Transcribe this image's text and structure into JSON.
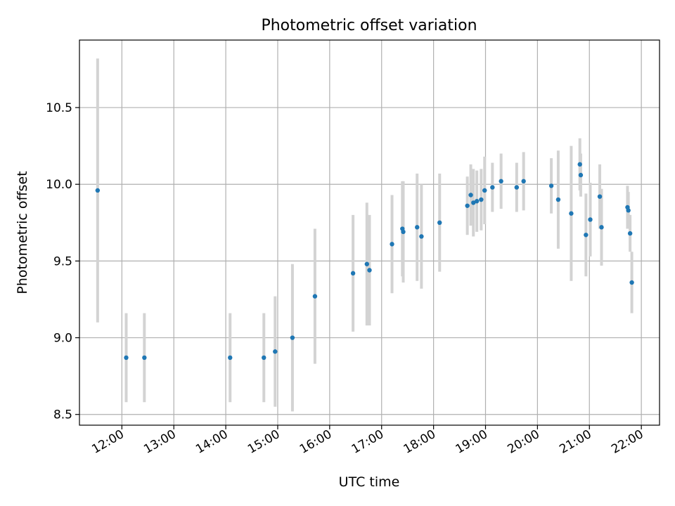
{
  "chart_data": {
    "type": "scatter",
    "title": "Photometric offset variation",
    "xlabel": "UTC time",
    "ylabel": "Photometric offset",
    "xlim": [
      "11:11",
      "22:21"
    ],
    "ylim": [
      8.43,
      10.94
    ],
    "grid": true,
    "x_ticks": [
      "12:00",
      "13:00",
      "14:00",
      "15:00",
      "16:00",
      "17:00",
      "18:00",
      "19:00",
      "20:00",
      "21:00",
      "22:00"
    ],
    "y_ticks": [
      "8.5",
      "9.0",
      "9.5",
      "10.0",
      "10.5"
    ],
    "colors": {
      "point": "#1f77b4",
      "errorbar": "#d3d3d3",
      "grid": "#b0b0b0",
      "axes": "#000000"
    },
    "series": [
      {
        "points": [
          {
            "x": "11:32",
            "y": 9.96,
            "err": 0.86
          },
          {
            "x": "12:05",
            "y": 8.87,
            "err": 0.29
          },
          {
            "x": "12:26",
            "y": 8.87,
            "err": 0.29
          },
          {
            "x": "14:05",
            "y": 8.87,
            "err": 0.29
          },
          {
            "x": "14:44",
            "y": 8.87,
            "err": 0.29
          },
          {
            "x": "14:57",
            "y": 8.91,
            "err": 0.36
          },
          {
            "x": "15:17",
            "y": 9.0,
            "err": 0.48
          },
          {
            "x": "15:43",
            "y": 9.27,
            "err": 0.44
          },
          {
            "x": "16:27",
            "y": 9.42,
            "err": 0.38
          },
          {
            "x": "16:43",
            "y": 9.48,
            "err": 0.4
          },
          {
            "x": "16:46",
            "y": 9.44,
            "err": 0.36
          },
          {
            "x": "17:12",
            "y": 9.61,
            "err": 0.32
          },
          {
            "x": "17:24",
            "y": 9.71,
            "err": 0.31
          },
          {
            "x": "17:25",
            "y": 9.69,
            "err": 0.33
          },
          {
            "x": "17:41",
            "y": 9.72,
            "err": 0.35
          },
          {
            "x": "17:46",
            "y": 9.66,
            "err": 0.34
          },
          {
            "x": "18:07",
            "y": 9.75,
            "err": 0.32
          },
          {
            "x": "18:39",
            "y": 9.86,
            "err": 0.19
          },
          {
            "x": "18:43",
            "y": 9.93,
            "err": 0.2
          },
          {
            "x": "18:46",
            "y": 9.88,
            "err": 0.22
          },
          {
            "x": "18:50",
            "y": 9.89,
            "err": 0.2
          },
          {
            "x": "18:55",
            "y": 9.9,
            "err": 0.2
          },
          {
            "x": "18:59",
            "y": 9.96,
            "err": 0.22
          },
          {
            "x": "19:08",
            "y": 9.98,
            "err": 0.16
          },
          {
            "x": "19:18",
            "y": 10.02,
            "err": 0.18
          },
          {
            "x": "19:36",
            "y": 9.98,
            "err": 0.16
          },
          {
            "x": "19:44",
            "y": 10.02,
            "err": 0.19
          },
          {
            "x": "20:16",
            "y": 9.99,
            "err": 0.18
          },
          {
            "x": "20:24",
            "y": 9.9,
            "err": 0.32
          },
          {
            "x": "20:39",
            "y": 9.81,
            "err": 0.44
          },
          {
            "x": "20:49",
            "y": 10.13,
            "err": 0.17
          },
          {
            "x": "20:50",
            "y": 10.06,
            "err": 0.14
          },
          {
            "x": "20:56",
            "y": 9.67,
            "err": 0.27
          },
          {
            "x": "21:01",
            "y": 9.77,
            "err": 0.24
          },
          {
            "x": "21:12",
            "y": 9.92,
            "err": 0.21
          },
          {
            "x": "21:14",
            "y": 9.72,
            "err": 0.25
          },
          {
            "x": "21:44",
            "y": 9.85,
            "err": 0.14
          },
          {
            "x": "21:45",
            "y": 9.83,
            "err": 0.12
          },
          {
            "x": "21:47",
            "y": 9.68,
            "err": 0.12
          },
          {
            "x": "21:49",
            "y": 9.36,
            "err": 0.2
          }
        ]
      }
    ]
  }
}
